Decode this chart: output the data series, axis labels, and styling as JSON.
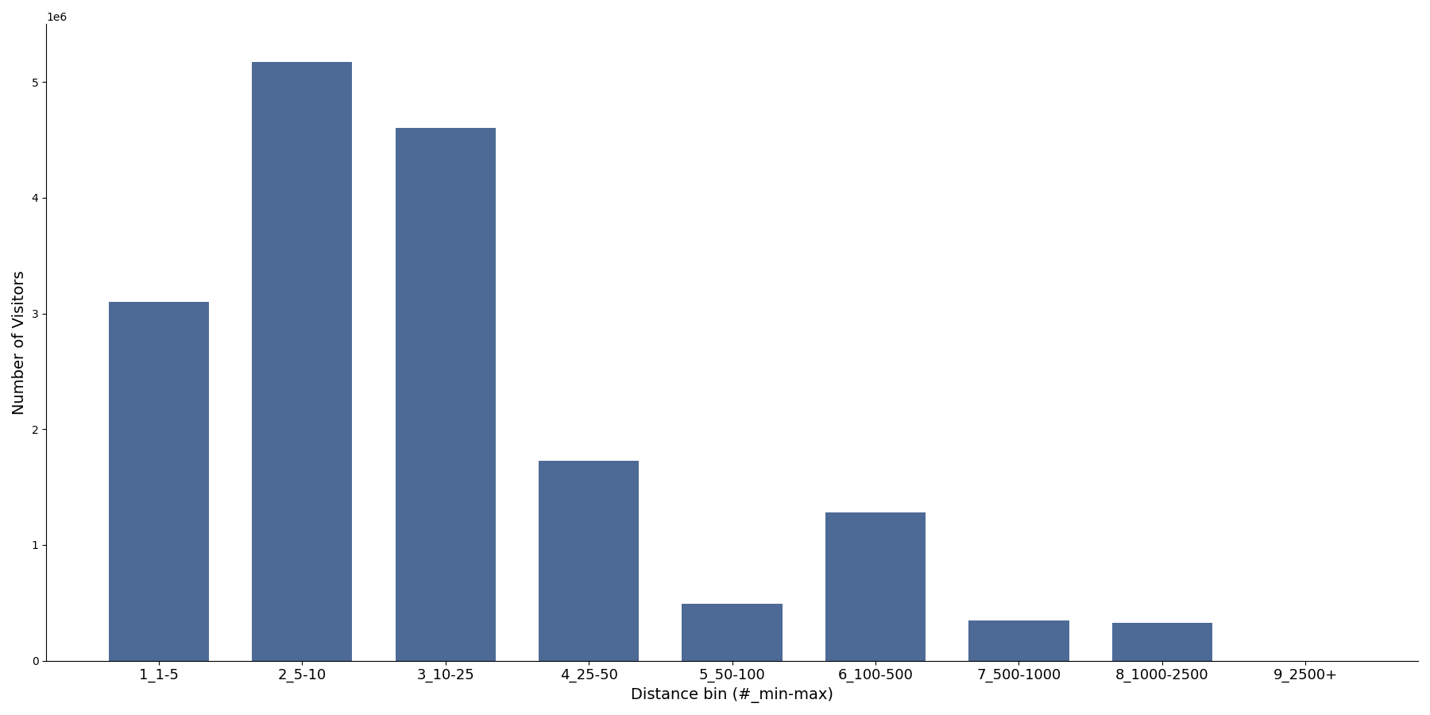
{
  "categories": [
    "1_1-5",
    "2_5-10",
    "3_10-25",
    "4_25-50",
    "5_50-100",
    "6_100-500",
    "7_500-1000",
    "8_1000-2500",
    "9_2500+"
  ],
  "values": [
    3100000,
    5175000,
    4600000,
    1730000,
    490000,
    1280000,
    345000,
    325000,
    0
  ],
  "bar_color": "#4d6a96",
  "xlabel": "Distance bin (#_min-max)",
  "ylabel": "Number of Visitors",
  "ylim": [
    0,
    5500000
  ],
  "background_color": "#ffffff",
  "tick_fontsize": 13,
  "label_fontsize": 14
}
